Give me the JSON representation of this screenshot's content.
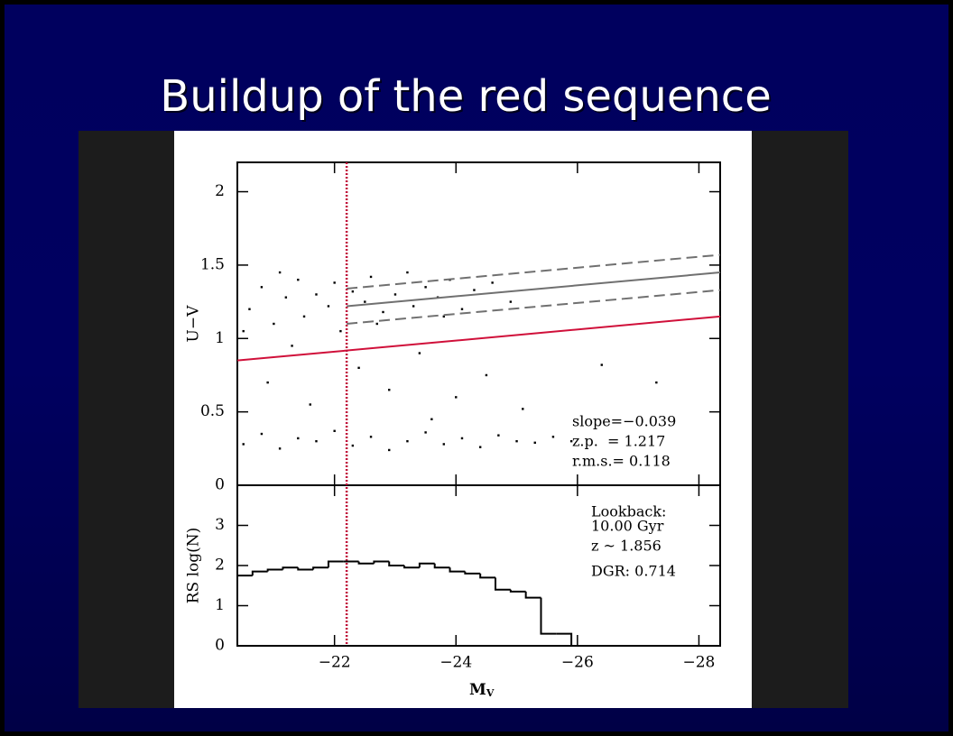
{
  "slide_title": "Buildup of the red sequence",
  "chart_data": [
    {
      "type": "scatter",
      "ylabel": "U−V",
      "xlim": [
        -20.4,
        -28.35
      ],
      "ylim": [
        0,
        2.2
      ],
      "yticks": [
        0,
        0.5,
        1,
        1.5,
        2
      ],
      "color": "#000000",
      "x": [
        -20.6,
        -20.8,
        -21.0,
        -21.2,
        -21.4,
        -21.5,
        -21.7,
        -21.9,
        -22.0,
        -22.1,
        -22.3,
        -22.5,
        -22.6,
        -22.8,
        -23.0,
        -23.2,
        -23.3,
        -23.5,
        -23.7,
        -23.9,
        -24.1,
        -24.3,
        -24.6,
        -24.9,
        -20.5,
        -21.1,
        -22.7,
        -23.8,
        -20.9,
        -21.6,
        -22.4,
        -22.9,
        -23.4,
        -24.0,
        -24.5,
        -25.1,
        -26.4,
        -27.3,
        -21.3,
        -23.6,
        -20.5,
        -20.8,
        -21.1,
        -21.4,
        -21.7,
        -22.0,
        -22.3,
        -22.6,
        -22.9,
        -23.2,
        -23.5,
        -23.8,
        -24.1,
        -24.4,
        -24.7,
        -25.0,
        -25.3,
        -25.6,
        -25.9
      ],
      "y": [
        1.2,
        1.35,
        1.1,
        1.28,
        1.4,
        1.15,
        1.3,
        1.22,
        1.38,
        1.05,
        1.32,
        1.25,
        1.42,
        1.18,
        1.3,
        1.45,
        1.22,
        1.35,
        1.28,
        1.4,
        1.2,
        1.33,
        1.38,
        1.25,
        1.05,
        1.45,
        1.1,
        1.15,
        0.7,
        0.55,
        0.8,
        0.65,
        0.9,
        0.6,
        0.75,
        0.52,
        0.82,
        0.7,
        0.95,
        0.45,
        0.28,
        0.35,
        0.25,
        0.32,
        0.3,
        0.37,
        0.27,
        0.33,
        0.24,
        0.3,
        0.36,
        0.28,
        0.32,
        0.26,
        0.34,
        0.3,
        0.29,
        0.33,
        0.3
      ],
      "lines": [
        {
          "x": [
            -20.4,
            -28.35
          ],
          "y": [
            0.85,
            1.15
          ],
          "color": "#d0103a",
          "dash": "solid"
        },
        {
          "x": [
            -22.2,
            -28.35
          ],
          "y": [
            1.22,
            1.45
          ],
          "color": "#707070",
          "dash": "solid"
        },
        {
          "x": [
            -22.2,
            -28.35
          ],
          "y": [
            1.34,
            1.57
          ],
          "color": "#707070",
          "dash": "dashed"
        },
        {
          "x": [
            -22.2,
            -28.35
          ],
          "y": [
            1.1,
            1.33
          ],
          "color": "#707070",
          "dash": "dashed"
        }
      ],
      "vline": {
        "x": -22.2,
        "color": "#c0103a"
      },
      "annotations": [
        "slope=−0.039",
        "z.p.  = 1.217",
        "r.m.s.= 0.118"
      ]
    },
    {
      "type": "histogram",
      "xlabel": "M",
      "xlabel_sub": "V",
      "ylabel": "RS log(N)",
      "xlim": [
        -20.4,
        -28.35
      ],
      "ylim": [
        0,
        4
      ],
      "xticks": [
        {
          "value": -22,
          "label": "−22"
        },
        {
          "value": -24,
          "label": "−24"
        },
        {
          "value": -26,
          "label": "−26"
        },
        {
          "value": -28,
          "label": "−28"
        }
      ],
      "yticks": [
        0,
        1,
        2,
        3
      ],
      "color": "#000000",
      "bins": [
        -20.4,
        -20.65,
        -20.9,
        -21.15,
        -21.4,
        -21.65,
        -21.9,
        -22.15,
        -22.4,
        -22.65,
        -22.9,
        -23.15,
        -23.4,
        -23.65,
        -23.9,
        -24.15,
        -24.4,
        -24.65,
        -24.9,
        -25.15,
        -25.4,
        -25.65,
        -25.9
      ],
      "values": [
        1.75,
        1.85,
        1.9,
        1.95,
        1.9,
        1.95,
        2.1,
        2.1,
        2.05,
        2.1,
        2.0,
        1.95,
        2.05,
        1.95,
        1.85,
        1.8,
        1.7,
        1.4,
        1.35,
        1.2,
        0.3,
        0.3
      ],
      "annotations": [
        "Lookback:",
        "10.00 Gyr",
        "z ~ 1.856",
        "DGR: 0.714"
      ]
    }
  ]
}
